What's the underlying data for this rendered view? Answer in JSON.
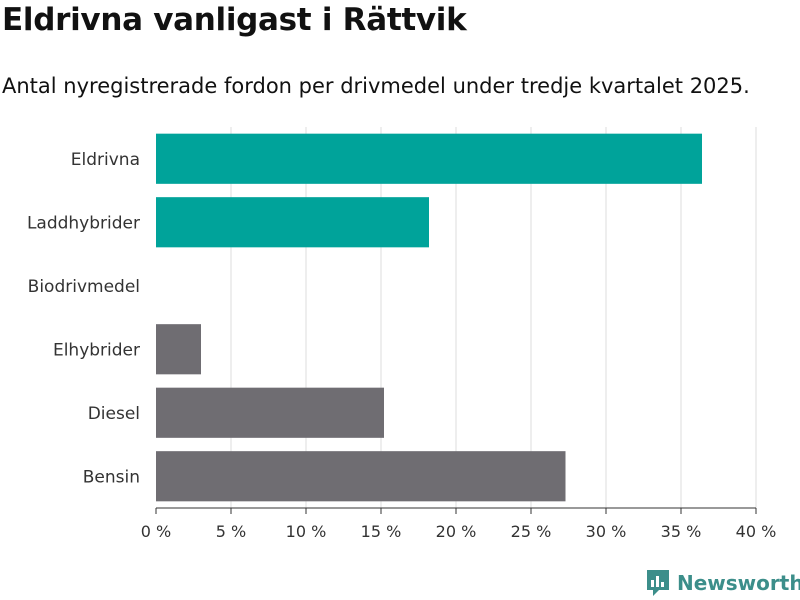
{
  "header": {
    "title": "Eldrivna vanligast i Rättvik",
    "subtitle": "Antal nyregistrerade fordon per drivmedel under tredje kvartalet 2025."
  },
  "brand": {
    "name": "Newsworthy",
    "icon": "newsworthy-logo-icon"
  },
  "colors": {
    "highlight": "#00a39a",
    "default": "#6f6d72",
    "grid": "#dddddd",
    "brand": "#3c8e8a"
  },
  "chart_data": {
    "type": "bar",
    "orientation": "horizontal",
    "categories": [
      "Eldrivna",
      "Laddhybrider",
      "Biodrivmedel",
      "Elhybrider",
      "Diesel",
      "Bensin"
    ],
    "values": [
      36.4,
      18.2,
      0,
      3.0,
      15.2,
      27.3
    ],
    "highlighted": [
      "Eldrivna",
      "Laddhybrider"
    ],
    "xlim": [
      0,
      40
    ],
    "ticks": [
      "0 %",
      "5 %",
      "10 %",
      "15 %",
      "20 %",
      "25 %",
      "30 %",
      "35 %",
      "40 %"
    ],
    "grid": true
  }
}
